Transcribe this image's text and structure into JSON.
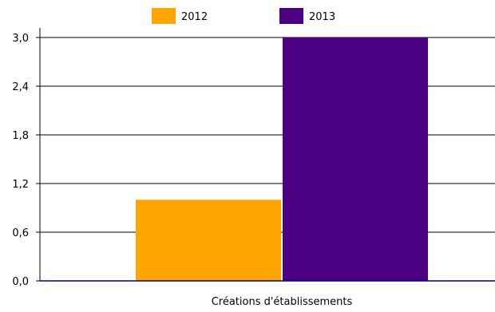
{
  "chart_data": {
    "type": "bar",
    "categories": [
      "Créations d'établissements"
    ],
    "series": [
      {
        "name": "2012",
        "values": [
          1.0
        ],
        "color": "#FFA500"
      },
      {
        "name": "2013",
        "values": [
          3.0
        ],
        "color": "#4B0082"
      }
    ],
    "ylim": [
      0,
      3.0
    ],
    "yticks": [
      "0,0",
      "0,6",
      "1,2",
      "1,8",
      "2,4",
      "3,0"
    ],
    "ytick_values": [
      0,
      0.6,
      1.2,
      1.8,
      2.4,
      3.0
    ],
    "grid": true,
    "legend_position": "top-center",
    "title": "",
    "xlabel": "",
    "ylabel": ""
  }
}
